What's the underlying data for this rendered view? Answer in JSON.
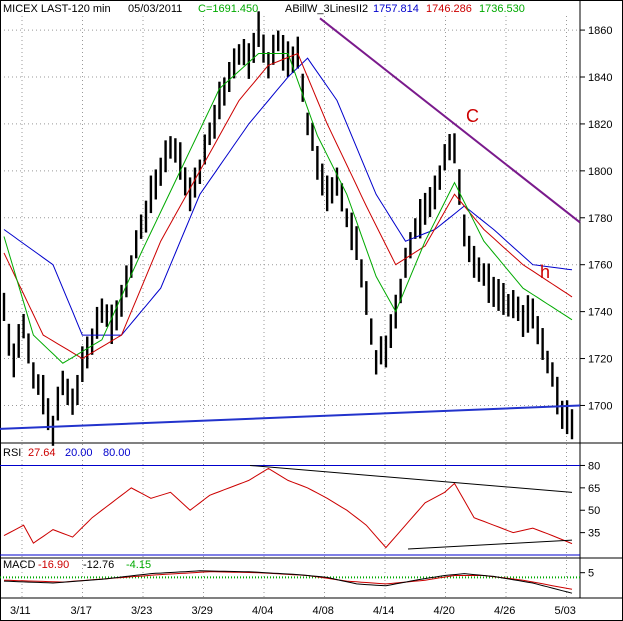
{
  "header": {
    "symbol": "MICEX LAST-120 min",
    "date": "05/03/2011",
    "close": "C=1691.450",
    "study": "ABillW_3LinesII2",
    "v1": "1757.814",
    "v2": "1746.286",
    "v3": "1736.530"
  },
  "rsi_header": {
    "name": "RSI",
    "value": "27.64",
    "lvl1": "20.00",
    "lvl2": "80.00"
  },
  "macd_header": {
    "name": "MACD",
    "v1": "-16.90",
    "v2": "-12.76",
    "v3": "-4.15"
  },
  "annotations": {
    "c": "C",
    "h": "h"
  },
  "colors": {
    "price": "#000000",
    "blue": "#0000cc",
    "red": "#cc0000",
    "green": "#00aa00",
    "trend": "#7a1a8c",
    "support": "#2233cc",
    "rsi": "#cc0000"
  },
  "chart_data": [
    {
      "type": "line",
      "panel": "price",
      "title": "MICEX LAST-120 min",
      "ylim": [
        1684,
        1866
      ],
      "yticks": [
        "1860",
        "1840",
        "1820",
        "1800",
        "1780",
        "1760",
        "1740",
        "1720",
        "1700"
      ],
      "xticks": [
        "3/11",
        "3/17",
        "3/23",
        "3/29",
        "4/04",
        "4/08",
        "4/14",
        "4/20",
        "4/26",
        "5/03"
      ],
      "price_keypoints": [
        [
          0,
          1740
        ],
        [
          2,
          1720
        ],
        [
          4,
          1735
        ],
        [
          6,
          1712
        ],
        [
          8,
          1705
        ],
        [
          10,
          1690
        ],
        [
          12,
          1710
        ],
        [
          14,
          1700
        ],
        [
          16,
          1718
        ],
        [
          18,
          1728
        ],
        [
          20,
          1740
        ],
        [
          22,
          1735
        ],
        [
          24,
          1745
        ],
        [
          26,
          1760
        ],
        [
          28,
          1775
        ],
        [
          30,
          1790
        ],
        [
          32,
          1800
        ],
        [
          34,
          1810
        ],
        [
          36,
          1805
        ],
        [
          38,
          1790
        ],
        [
          40,
          1800
        ],
        [
          42,
          1815
        ],
        [
          44,
          1830
        ],
        [
          46,
          1840
        ],
        [
          48,
          1850
        ],
        [
          50,
          1848
        ],
        [
          52,
          1860
        ],
        [
          54,
          1845
        ],
        [
          56,
          1855
        ],
        [
          58,
          1848
        ],
        [
          60,
          1850
        ],
        [
          62,
          1820
        ],
        [
          64,
          1805
        ],
        [
          66,
          1790
        ],
        [
          68,
          1795
        ],
        [
          70,
          1780
        ],
        [
          72,
          1770
        ],
        [
          74,
          1745
        ],
        [
          76,
          1718
        ],
        [
          78,
          1725
        ],
        [
          80,
          1740
        ],
        [
          82,
          1760
        ],
        [
          84,
          1775
        ],
        [
          86,
          1785
        ],
        [
          88,
          1790
        ],
        [
          90,
          1805
        ],
        [
          92,
          1812
        ],
        [
          94,
          1775
        ],
        [
          96,
          1760
        ],
        [
          98,
          1755
        ],
        [
          100,
          1750
        ],
        [
          102,
          1745
        ],
        [
          104,
          1742
        ],
        [
          106,
          1738
        ],
        [
          108,
          1740
        ],
        [
          110,
          1725
        ],
        [
          112,
          1712
        ],
        [
          114,
          1698
        ],
        [
          116,
          1692
        ]
      ],
      "ma_blue_keypoints": [
        [
          0,
          1775
        ],
        [
          10,
          1760
        ],
        [
          16,
          1730
        ],
        [
          24,
          1730
        ],
        [
          32,
          1750
        ],
        [
          40,
          1790
        ],
        [
          50,
          1820
        ],
        [
          58,
          1840
        ],
        [
          62,
          1848
        ],
        [
          68,
          1830
        ],
        [
          76,
          1790
        ],
        [
          82,
          1770
        ],
        [
          88,
          1775
        ],
        [
          94,
          1785
        ],
        [
          100,
          1775
        ],
        [
          108,
          1760
        ],
        [
          116,
          1757.814
        ]
      ],
      "ma_red_keypoints": [
        [
          0,
          1765
        ],
        [
          8,
          1730
        ],
        [
          16,
          1720
        ],
        [
          24,
          1730
        ],
        [
          32,
          1770
        ],
        [
          40,
          1800
        ],
        [
          48,
          1830
        ],
        [
          54,
          1845
        ],
        [
          60,
          1850
        ],
        [
          66,
          1820
        ],
        [
          74,
          1785
        ],
        [
          80,
          1760
        ],
        [
          86,
          1768
        ],
        [
          92,
          1790
        ],
        [
          98,
          1775
        ],
        [
          106,
          1760
        ],
        [
          116,
          1746.286
        ]
      ],
      "ma_green_keypoints": [
        [
          0,
          1772
        ],
        [
          6,
          1730
        ],
        [
          12,
          1718
        ],
        [
          20,
          1728
        ],
        [
          28,
          1765
        ],
        [
          36,
          1800
        ],
        [
          44,
          1835
        ],
        [
          52,
          1850
        ],
        [
          58,
          1850
        ],
        [
          64,
          1815
        ],
        [
          70,
          1790
        ],
        [
          76,
          1755
        ],
        [
          80,
          1740
        ],
        [
          86,
          1770
        ],
        [
          92,
          1795
        ],
        [
          98,
          1770
        ],
        [
          106,
          1750
        ],
        [
          116,
          1736.53
        ]
      ],
      "trendline": [
        [
          1,
          1865
        ],
        [
          2,
          1778
        ]
      ],
      "support_line": [
        [
          0,
          1690
        ],
        [
          1,
          1700
        ]
      ]
    },
    {
      "type": "line",
      "panel": "rsi",
      "title": "RSI",
      "ylim": [
        18,
        85
      ],
      "yticks": [
        "80",
        "65",
        "50",
        "35"
      ],
      "levels": [
        80,
        20
      ],
      "rsi_keypoints": [
        [
          0,
          33
        ],
        [
          4,
          40
        ],
        [
          6,
          28
        ],
        [
          10,
          37
        ],
        [
          14,
          32
        ],
        [
          18,
          45
        ],
        [
          22,
          55
        ],
        [
          26,
          65
        ],
        [
          30,
          58
        ],
        [
          34,
          62
        ],
        [
          38,
          50
        ],
        [
          42,
          60
        ],
        [
          46,
          65
        ],
        [
          50,
          70
        ],
        [
          54,
          78
        ],
        [
          58,
          70
        ],
        [
          62,
          65
        ],
        [
          66,
          58
        ],
        [
          70,
          50
        ],
        [
          74,
          40
        ],
        [
          78,
          25
        ],
        [
          82,
          40
        ],
        [
          86,
          55
        ],
        [
          90,
          62
        ],
        [
          92,
          68
        ],
        [
          96,
          45
        ],
        [
          100,
          40
        ],
        [
          104,
          35
        ],
        [
          108,
          38
        ],
        [
          112,
          33
        ],
        [
          116,
          27.64
        ]
      ],
      "upper_trend": [
        [
          0,
          80
        ],
        [
          1,
          62
        ]
      ],
      "lower_trend": [
        [
          0,
          24
        ],
        [
          1,
          30
        ]
      ]
    },
    {
      "type": "line",
      "panel": "macd",
      "title": "MACD",
      "yticks": [
        "5"
      ],
      "macd_keypoints": [
        [
          0,
          -4
        ],
        [
          10,
          -6
        ],
        [
          20,
          -2
        ],
        [
          30,
          4
        ],
        [
          40,
          7
        ],
        [
          50,
          6
        ],
        [
          60,
          3
        ],
        [
          66,
          0
        ],
        [
          72,
          -7
        ],
        [
          78,
          -9
        ],
        [
          84,
          -3
        ],
        [
          90,
          2
        ],
        [
          94,
          4
        ],
        [
          100,
          1
        ],
        [
          108,
          -6
        ],
        [
          116,
          -16.9
        ]
      ],
      "signal_keypoints": [
        [
          0,
          -3
        ],
        [
          12,
          -5
        ],
        [
          22,
          -1
        ],
        [
          32,
          3
        ],
        [
          42,
          6
        ],
        [
          52,
          5
        ],
        [
          62,
          2
        ],
        [
          70,
          -4
        ],
        [
          78,
          -7
        ],
        [
          86,
          -3
        ],
        [
          92,
          2
        ],
        [
          98,
          2
        ],
        [
          106,
          -3
        ],
        [
          116,
          -12.76
        ]
      ]
    }
  ]
}
